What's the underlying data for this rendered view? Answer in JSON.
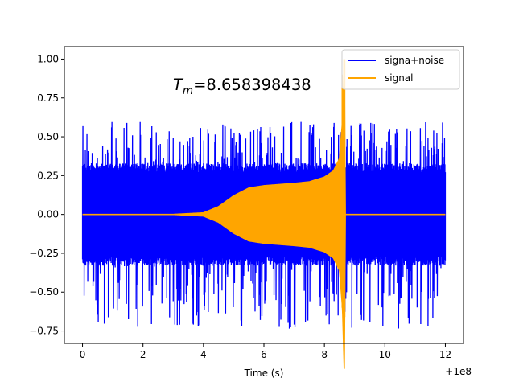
{
  "chart_data": {
    "type": "line",
    "title": "",
    "xlabel": "Time (s)",
    "ylabel": "",
    "x_offset_text": "+1e8",
    "xlim": [
      -0.6,
      12.6
    ],
    "ylim": [
      -0.83,
      1.08
    ],
    "x_ticks": [
      0,
      2,
      4,
      6,
      8,
      10,
      12
    ],
    "x_tick_labels": [
      "0",
      "2",
      "4",
      "6",
      "8",
      "10",
      "12"
    ],
    "y_ticks": [
      -0.75,
      -0.5,
      -0.25,
      0.0,
      0.25,
      0.5,
      0.75,
      1.0
    ],
    "y_tick_labels": [
      "−0.75",
      "−0.50",
      "−0.25",
      "0.00",
      "0.25",
      "0.50",
      "0.75",
      "1.00"
    ],
    "legend_position": "upper-right",
    "annotation": {
      "prefix": "T",
      "subscript": "m",
      "value": "=8.658398438",
      "x": 3.0,
      "y": 0.8
    },
    "series": [
      {
        "name": "signa+noise",
        "color": "#0000ff",
        "x_range": [
          0,
          12
        ],
        "noise_band_upper": 0.33,
        "noise_band_lower": -0.33,
        "spike_peak_upper": 0.6,
        "spike_peak_lower": -0.74
      },
      {
        "name": "signal",
        "color": "#ffa500",
        "envelope": [
          {
            "x": 0,
            "y": 0.0
          },
          {
            "x": 3.0,
            "y": 0.0
          },
          {
            "x": 4.0,
            "y": 0.01
          },
          {
            "x": 4.5,
            "y": 0.05
          },
          {
            "x": 5.0,
            "y": 0.12
          },
          {
            "x": 5.5,
            "y": 0.17
          },
          {
            "x": 6.0,
            "y": 0.185
          },
          {
            "x": 7.0,
            "y": 0.2
          },
          {
            "x": 7.5,
            "y": 0.21
          },
          {
            "x": 8.0,
            "y": 0.24
          },
          {
            "x": 8.3,
            "y": 0.28
          },
          {
            "x": 8.5,
            "y": 0.36
          },
          {
            "x": 8.6,
            "y": 0.6
          },
          {
            "x": 8.658,
            "y": 1.0
          },
          {
            "x": 8.69,
            "y": 0.0
          },
          {
            "x": 12,
            "y": 0.0
          }
        ],
        "peak_upper": 1.0,
        "peak_lower": -0.66
      }
    ]
  }
}
